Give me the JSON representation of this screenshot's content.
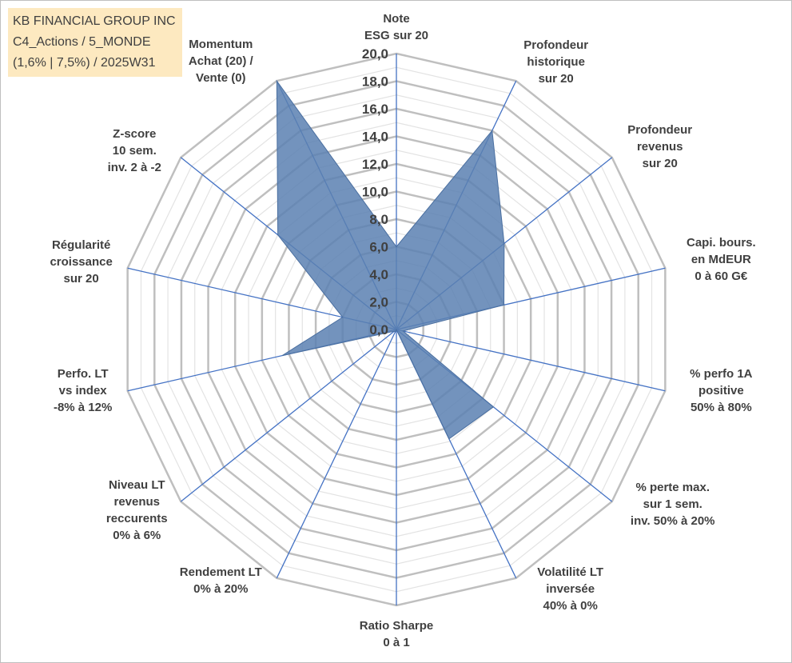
{
  "header": {
    "line1": "KB FINANCIAL GROUP INC",
    "line2": "C4_Actions / 5_MONDE",
    "line3": "(1,6% | 7,5%) / 2025W31"
  },
  "colors": {
    "fill": "#5b80b2",
    "axis": "#4472c4",
    "grid_major": "#bfbfbf",
    "grid_minor": "#e3e3e3",
    "title_bg": "#fde9c0"
  },
  "chart_data": {
    "type": "radar",
    "range": [
      0,
      20
    ],
    "tick_labels": [
      "0,0",
      "2,0",
      "4,0",
      "6,0",
      "8,0",
      "10,0",
      "12,0",
      "14,0",
      "16,0",
      "18,0",
      "20,0"
    ],
    "axes": [
      {
        "label": [
          "Note",
          "ESG sur 20"
        ],
        "value": 6.0
      },
      {
        "label": [
          "Profondeur",
          "historique",
          "sur 20"
        ],
        "value": 16.0
      },
      {
        "label": [
          "Profondeur",
          "revenus",
          "sur 20"
        ],
        "value": 10.0
      },
      {
        "label": [
          "Capi. bours.",
          "en MdEUR",
          "0 à 60 G€"
        ],
        "value": 8.0
      },
      {
        "label": [
          "% perfo 1A",
          "positive",
          "50% à 80%"
        ],
        "value": 0.5
      },
      {
        "label": [
          "% perte max.",
          "sur 1 sem.",
          "inv. 50% à 20%"
        ],
        "value": 9.0
      },
      {
        "label": [
          "Volatilité LT",
          "inversée",
          "40% à 0%"
        ],
        "value": 8.8
      },
      {
        "label": [
          "Ratio Sharpe",
          "0 à 1"
        ],
        "value": 0.0
      },
      {
        "label": [
          "Rendement LT",
          "0% à 20%"
        ],
        "value": 0.2
      },
      {
        "label": [
          "Niveau LT",
          "revenus",
          "reccurents",
          "0% à 6%"
        ],
        "value": 0.2
      },
      {
        "label": [
          "Perfo. LT",
          "vs index",
          "-8% à 12%"
        ],
        "value": 8.5
      },
      {
        "label": [
          "Régularité",
          "croissance",
          "sur 20"
        ],
        "value": 4.0
      },
      {
        "label": [
          "Z-score",
          "10 sem.",
          "inv. 2 à -2"
        ],
        "value": 11.0
      },
      {
        "label": [
          "Momentum",
          "Achat (20) /",
          "Vente (0)"
        ],
        "value": 20.0
      }
    ]
  }
}
